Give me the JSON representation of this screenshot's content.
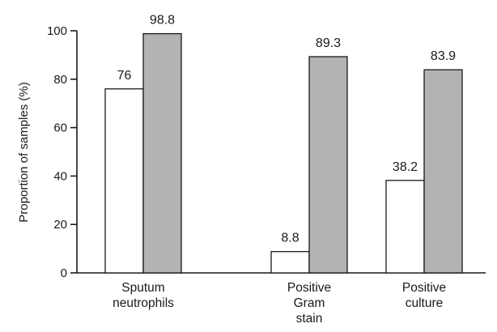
{
  "chart_data": {
    "type": "bar",
    "title": "",
    "xlabel": "",
    "ylabel": "Proportion of samples (%)",
    "ylim": [
      0,
      100
    ],
    "yticks": [
      0,
      20,
      40,
      60,
      80,
      100
    ],
    "categories": [
      [
        "Sputum",
        "neutrophils"
      ],
      [
        "Positive",
        "Gram",
        "stain"
      ],
      [
        "Positive",
        "culture"
      ]
    ],
    "series": [
      {
        "values": [
          76,
          8.8,
          38.2
        ],
        "value_labels": [
          "76",
          "8.8",
          "38.2"
        ],
        "color": "#ffffff"
      },
      {
        "values": [
          98.8,
          89.3,
          83.9
        ],
        "value_labels": [
          "98.8",
          "89.3",
          "83.9"
        ],
        "color": "#b3b3b3"
      }
    ],
    "grid": false,
    "legend": "none"
  }
}
